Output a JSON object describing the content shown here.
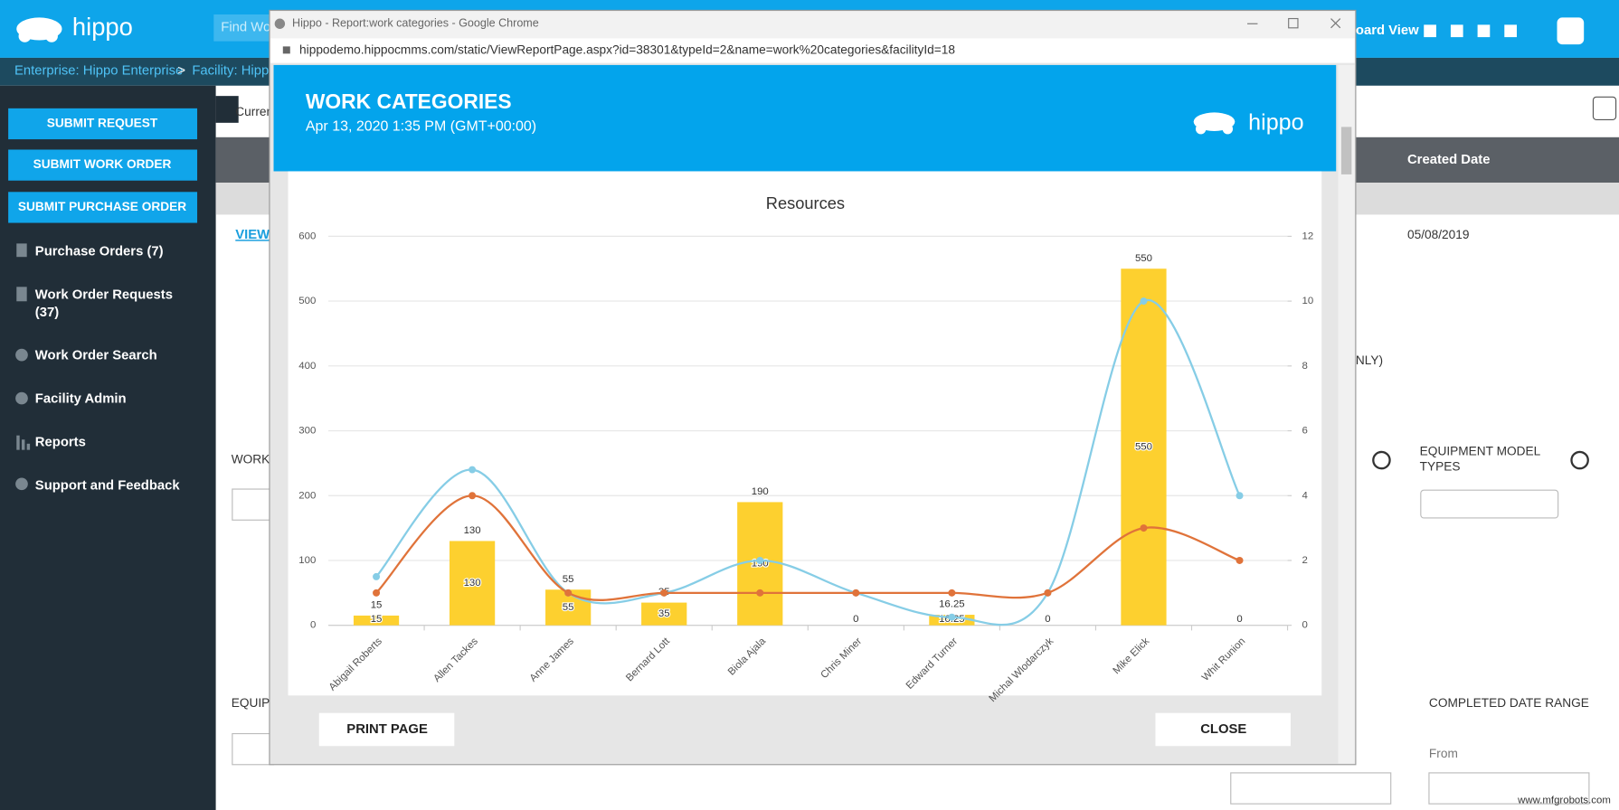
{
  "app": {
    "logo": "hippo",
    "search": "Find Wo",
    "header_right": "oard View",
    "breadcrumb": [
      "Enterprise: Hippo Enterprise",
      ">",
      "Facility: Hippo"
    ],
    "sidebar_buttons": [
      "SUBMIT REQUEST",
      "SUBMIT WORK ORDER",
      "SUBMIT PURCHASE ORDER"
    ],
    "menu": [
      "Purchase Orders (7)",
      "Work Order Requests",
      "(37)",
      "Work Order Search",
      "Facility Admin",
      "Reports",
      "Support and Feedback"
    ],
    "background": {
      "current": "Curren",
      "column": "Created Date",
      "view": "VIEW",
      "date": "05/08/2019",
      "only": "NLY)",
      "work": "WORK",
      "equipment_model": [
        "EQUIPMENT MODEL",
        "TYPES"
      ],
      "equip": "EQUIP",
      "completed": "COMPLETED DATE RANGE",
      "from": "From"
    }
  },
  "popup": {
    "window_title": "Hippo - Report:work categories - Google Chrome",
    "url": "hippodemo.hippocmms.com/static/ViewReportPage.aspx?id=38301&typeId=2&name=work%20categories&facilityId=18",
    "title": "WORK CATEGORIES",
    "date": "Apr 13, 2020 1:35 PM (GMT+00:00)",
    "logo": "hippo",
    "print": "PRINT PAGE",
    "close": "CLOSE"
  },
  "watermark": "www.mfgrobots.com",
  "chart_data": {
    "type": "bar",
    "title": "Resources",
    "categories": [
      "Abigail Roberts",
      "Allen Tackes",
      "Anne James",
      "Bernard Lott",
      "Biola Ajala",
      "Chris Miner",
      "Edward Turner",
      "Michal Wlodarczyk",
      "Mike Elick",
      "Whit Runion"
    ],
    "series": [
      {
        "type": "bar",
        "color": "#fdd02f",
        "values": [
          15,
          130,
          55,
          35,
          190,
          0,
          16.25,
          0,
          550,
          0
        ]
      },
      {
        "type": "line",
        "axis": "y2",
        "color": "#86cde6",
        "values": [
          1.5,
          4.8,
          1,
          1,
          2,
          1,
          0.25,
          1,
          10,
          4
        ]
      },
      {
        "type": "line",
        "axis": "y2",
        "color": "#e0733a",
        "values": [
          1,
          4,
          1,
          1,
          1,
          1,
          1,
          1,
          3,
          2
        ]
      }
    ],
    "ylim": [
      0,
      600
    ],
    "yticks": [
      0,
      100,
      200,
      300,
      400,
      500,
      600
    ],
    "y2lim": [
      0,
      12
    ],
    "y2ticks": [
      0,
      2,
      4,
      6,
      8,
      10,
      12
    ],
    "grid": true
  }
}
